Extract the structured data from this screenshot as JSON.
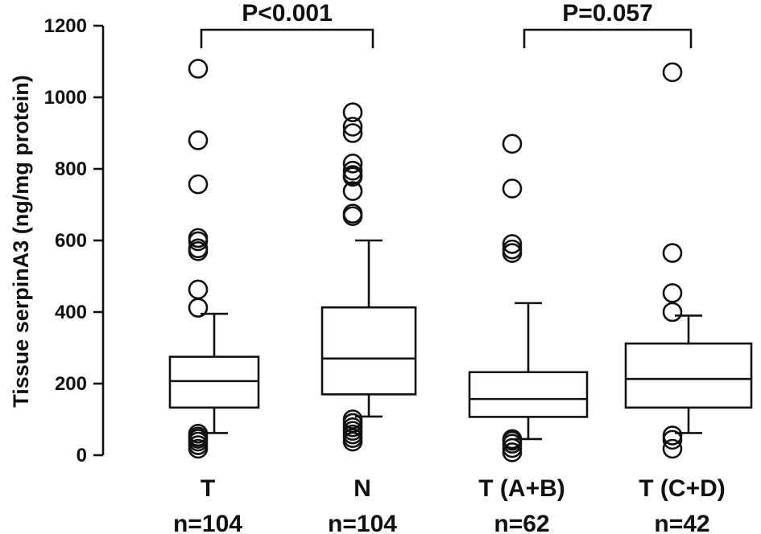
{
  "chart_data": {
    "type": "box",
    "ylabel": "Tissue serpinA3  (ng/mg protein)",
    "ylim": [
      0,
      1200
    ],
    "yticks": [
      0,
      200,
      400,
      600,
      800,
      1000,
      1200
    ],
    "groups": [
      {
        "label": "T",
        "n_label": "n=104",
        "whisker_low": 62,
        "q1": 133,
        "median": 207,
        "q3": 275,
        "whisker_high": 395,
        "outliers": [
          1080,
          880,
          757,
          607,
          598,
          578,
          570,
          463,
          412,
          60,
          52,
          46,
          38,
          28,
          18
        ]
      },
      {
        "label": "N",
        "n_label": "n=104",
        "whisker_low": 108,
        "q1": 170,
        "median": 270,
        "q3": 413,
        "whisker_high": 600,
        "outliers": [
          958,
          918,
          900,
          815,
          795,
          783,
          778,
          738,
          675,
          668,
          100,
          90,
          78,
          68,
          58,
          48,
          38
        ]
      },
      {
        "label": "T (A+B)",
        "n_label": "n=62",
        "whisker_low": 45,
        "q1": 107,
        "median": 157,
        "q3": 232,
        "whisker_high": 425,
        "outliers": [
          870,
          745,
          590,
          575,
          565,
          45,
          40,
          32,
          20,
          8
        ]
      },
      {
        "label": "T (C+D)",
        "n_label": "n=42",
        "whisker_low": 62,
        "q1": 133,
        "median": 213,
        "q3": 312,
        "whisker_high": 390,
        "outliers": [
          1070,
          565,
          453,
          400,
          55,
          43,
          18
        ]
      }
    ],
    "comparisons": [
      {
        "between": [
          "T",
          "N"
        ],
        "label": "P<0.001",
        "bracket_y": 1190,
        "drop_to": 1130
      },
      {
        "between": [
          "T (A+B)",
          "T (C+D)"
        ],
        "label": "P=0.057",
        "bracket_y": 1190,
        "drop_to": 1130
      }
    ],
    "grid": false,
    "legend": "none"
  }
}
